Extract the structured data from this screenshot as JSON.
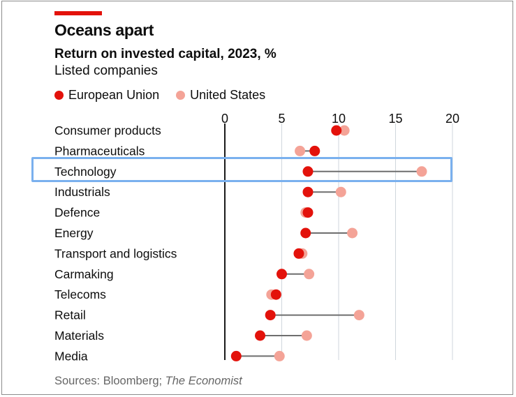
{
  "header": {
    "title": "Oceans apart",
    "subtitle": "Return on invested capital, 2023, %",
    "subtitle2": "Listed companies"
  },
  "legend": [
    {
      "label": "European Union",
      "color": "#e3120b"
    },
    {
      "label": "United States",
      "color": "#f4a397"
    }
  ],
  "source": {
    "prefix": "Sources: Bloomberg; ",
    "italic": "The Economist"
  },
  "highlighted_category": "Technology",
  "chart_data": {
    "type": "dot",
    "title": "Return on invested capital, 2023, %",
    "subtitle": "Listed companies",
    "xlim": [
      0,
      20
    ],
    "xticks": [
      "0",
      "5",
      "10",
      "15",
      "20"
    ],
    "categories": [
      "Consumer products",
      "Pharmaceuticals",
      "Technology",
      "Industrials",
      "Defence",
      "Energy",
      "Transport and logistics",
      "Carmaking",
      "Telecoms",
      "Retail",
      "Materials",
      "Media"
    ],
    "series": [
      {
        "name": "European Union",
        "color": "#e3120b",
        "values": [
          9.8,
          7.9,
          7.3,
          7.3,
          7.3,
          7.1,
          6.5,
          5.0,
          4.5,
          4.0,
          3.1,
          1.0
        ]
      },
      {
        "name": "United States",
        "color": "#f4a397",
        "values": [
          10.5,
          6.6,
          17.3,
          10.2,
          7.1,
          11.2,
          6.8,
          7.4,
          4.1,
          11.8,
          7.2,
          4.8
        ]
      }
    ],
    "grid": true,
    "legend_position": "top"
  }
}
